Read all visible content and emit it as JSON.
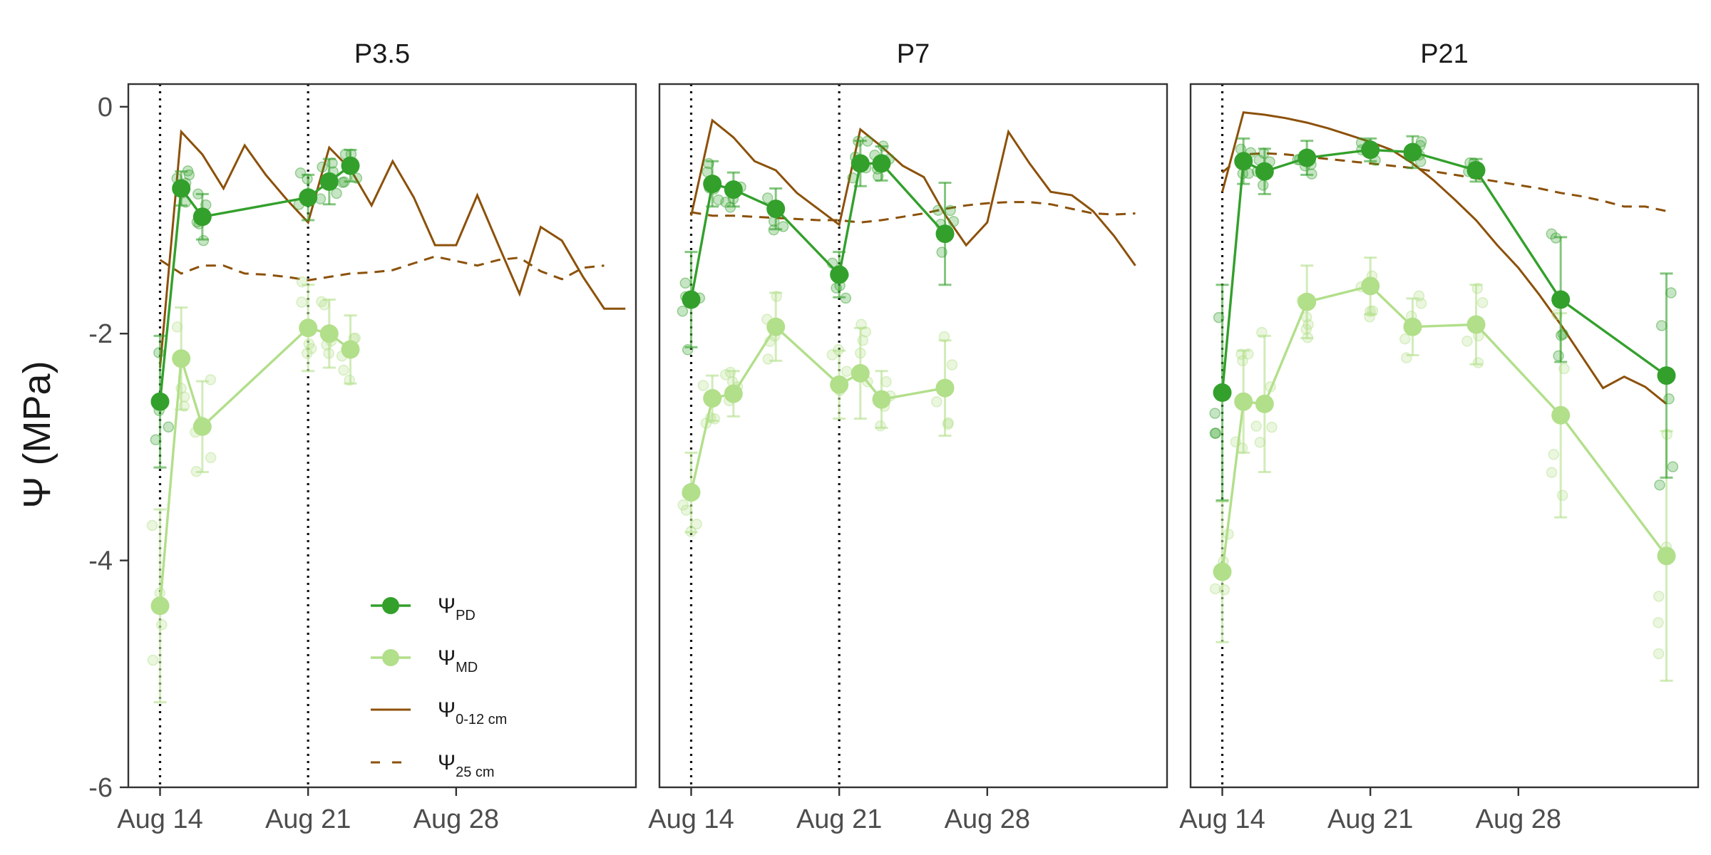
{
  "chart_data": {
    "type": "line",
    "y_axis": {
      "label": "Ψ (MPa)",
      "ticks": [
        0,
        -2,
        -4,
        -6
      ],
      "range": [
        -6,
        0.2
      ]
    },
    "x_axis": {
      "ticks": [
        "Aug 14",
        "Aug 21",
        "Aug 28"
      ],
      "tick_values": [
        0,
        7,
        14
      ],
      "start_date": "Aug 14",
      "range": [
        -1.5,
        22.5
      ]
    },
    "legend": [
      {
        "key": "pd",
        "symbol": "Ψ",
        "sub": "PD",
        "style": "line-point",
        "color": "#33a02c"
      },
      {
        "key": "md",
        "symbol": "Ψ",
        "sub": "MD",
        "style": "line-point",
        "color": "#b2df8a"
      },
      {
        "key": "soil12",
        "symbol": "Ψ",
        "sub": "0-12 cm",
        "style": "solid",
        "color": "#8c510a"
      },
      {
        "key": "soil25",
        "symbol": "Ψ",
        "sub": "25 cm",
        "style": "dashed",
        "color": "#8c510a"
      }
    ],
    "panels": [
      {
        "title": "P3.5",
        "vlines": [
          0,
          7
        ],
        "pd": {
          "x": [
            0,
            1,
            2,
            7,
            8,
            9
          ],
          "y": [
            -2.6,
            -0.72,
            -0.97,
            -0.8,
            -0.66,
            -0.52
          ],
          "err": [
            0.58,
            0.15,
            0.2,
            0.2,
            0.2,
            0.14
          ]
        },
        "md": {
          "x": [
            0,
            1,
            2,
            7,
            8,
            9
          ],
          "y": [
            -4.4,
            -2.22,
            -2.82,
            -1.95,
            -2.0,
            -2.14
          ],
          "err": [
            0.85,
            0.45,
            0.4,
            0.38,
            0.3,
            0.3
          ]
        },
        "soil12": {
          "x": [
            0,
            1,
            2,
            3,
            4,
            5,
            6,
            7,
            8,
            9,
            10,
            11,
            12,
            13,
            14,
            15,
            16,
            17,
            18,
            19,
            20,
            21,
            22
          ],
          "y": [
            -2.3,
            -0.22,
            -0.42,
            -0.72,
            -0.34,
            -0.6,
            -0.82,
            -1.02,
            -0.36,
            -0.55,
            -0.87,
            -0.48,
            -0.8,
            -1.22,
            -1.22,
            -0.78,
            -1.22,
            -1.65,
            -1.06,
            -1.18,
            -1.5,
            -1.78,
            -1.78
          ]
        },
        "soil25": {
          "x": [
            0,
            1,
            2,
            3,
            4,
            5,
            6,
            7,
            8,
            9,
            10,
            11,
            12,
            13,
            14,
            15,
            16,
            17,
            18,
            19,
            20,
            21
          ],
          "y": [
            -1.35,
            -1.47,
            -1.4,
            -1.4,
            -1.47,
            -1.48,
            -1.5,
            -1.53,
            -1.5,
            -1.47,
            -1.46,
            -1.44,
            -1.38,
            -1.32,
            -1.36,
            -1.4,
            -1.35,
            -1.33,
            -1.45,
            -1.52,
            -1.42,
            -1.4
          ]
        }
      },
      {
        "title": "P7",
        "vlines": [
          0,
          7
        ],
        "pd": {
          "x": [
            0,
            1,
            2,
            4,
            7,
            8,
            9,
            12
          ],
          "y": [
            -1.7,
            -0.68,
            -0.73,
            -0.9,
            -1.48,
            -0.5,
            -0.5,
            -1.12
          ],
          "err": [
            0.42,
            0.2,
            0.15,
            0.18,
            0.2,
            0.2,
            0.15,
            0.45
          ]
        },
        "md": {
          "x": [
            0,
            1,
            2,
            4,
            7,
            8,
            9,
            12
          ],
          "y": [
            -3.4,
            -2.57,
            -2.53,
            -1.94,
            -2.45,
            -2.35,
            -2.58,
            -2.48
          ],
          "err": [
            0.35,
            0.2,
            0.2,
            0.3,
            0.3,
            0.4,
            0.25,
            0.42
          ]
        },
        "soil12": {
          "x": [
            0,
            1,
            2,
            3,
            4,
            5,
            6,
            7,
            8,
            9,
            10,
            11,
            12,
            13,
            14,
            15,
            16,
            17,
            18,
            19,
            20,
            21
          ],
          "y": [
            -0.96,
            -0.12,
            -0.27,
            -0.48,
            -0.56,
            -0.76,
            -0.9,
            -1.04,
            -0.2,
            -0.35,
            -0.52,
            -0.62,
            -0.95,
            -1.22,
            -1.02,
            -0.22,
            -0.5,
            -0.75,
            -0.78,
            -0.92,
            -1.14,
            -1.4
          ]
        },
        "soil25": {
          "x": [
            0,
            1,
            2,
            3,
            4,
            5,
            6,
            7,
            8,
            9,
            10,
            11,
            12,
            13,
            14,
            15,
            16,
            17,
            18,
            19,
            20,
            21
          ],
          "y": [
            -0.93,
            -0.96,
            -0.96,
            -0.97,
            -0.98,
            -0.99,
            -1.0,
            -1.0,
            -1.02,
            -1.0,
            -0.97,
            -0.94,
            -0.9,
            -0.87,
            -0.85,
            -0.84,
            -0.84,
            -0.86,
            -0.9,
            -0.94,
            -0.95,
            -0.94
          ]
        }
      },
      {
        "title": "P21",
        "vlines": [
          0
        ],
        "pd": {
          "x": [
            0,
            1,
            2,
            4,
            7,
            9,
            12,
            16,
            21
          ],
          "y": [
            -2.52,
            -0.48,
            -0.57,
            -0.45,
            -0.38,
            -0.4,
            -0.56,
            -1.7,
            -2.37
          ],
          "err": [
            0.95,
            0.2,
            0.2,
            0.15,
            0.1,
            0.14,
            0.1,
            0.55,
            0.9
          ]
        },
        "md": {
          "x": [
            0,
            1,
            2,
            4,
            7,
            9,
            12,
            16,
            21
          ],
          "y": [
            -4.1,
            -2.6,
            -2.62,
            -1.72,
            -1.58,
            -1.94,
            -1.92,
            -2.72,
            -3.96
          ],
          "err": [
            0.62,
            0.45,
            0.6,
            0.32,
            0.25,
            0.25,
            0.35,
            0.9,
            1.1
          ]
        },
        "soil12": {
          "x": [
            0,
            1,
            2,
            3,
            4,
            5,
            6,
            7,
            8,
            9,
            10,
            11,
            12,
            13,
            14,
            15,
            16,
            17,
            18,
            19,
            20,
            21
          ],
          "y": [
            -0.75,
            -0.05,
            -0.07,
            -0.1,
            -0.14,
            -0.19,
            -0.25,
            -0.31,
            -0.38,
            -0.5,
            -0.65,
            -0.82,
            -1.0,
            -1.22,
            -1.42,
            -1.66,
            -1.92,
            -2.2,
            -2.48,
            -2.38,
            -2.47,
            -2.62
          ]
        },
        "soil25": {
          "x": [
            0,
            1,
            2,
            3,
            4,
            5,
            6,
            7,
            8,
            9,
            10,
            11,
            12,
            13,
            14,
            15,
            16,
            17,
            18,
            19,
            20,
            21
          ],
          "y": [
            -0.58,
            -0.42,
            -0.41,
            -0.42,
            -0.44,
            -0.46,
            -0.48,
            -0.5,
            -0.52,
            -0.54,
            -0.57,
            -0.6,
            -0.63,
            -0.66,
            -0.69,
            -0.72,
            -0.76,
            -0.79,
            -0.83,
            -0.88,
            -0.88,
            -0.92
          ]
        }
      }
    ],
    "colors": {
      "pd": "#33a02c",
      "md": "#b2df8a",
      "soil": "#8c510a",
      "frame": "#333333"
    }
  }
}
